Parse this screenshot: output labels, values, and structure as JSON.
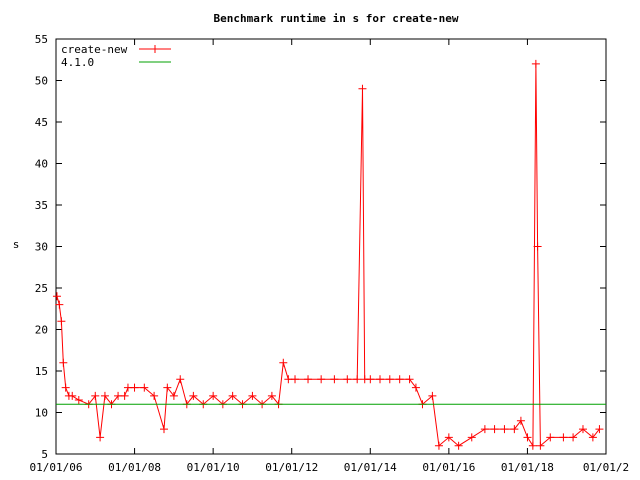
{
  "chart_data": {
    "type": "line",
    "title": "Benchmark runtime in s for create-new",
    "xlabel": "",
    "ylabel": "s",
    "x_tick_labels": [
      "01/01/06",
      "01/01/08",
      "01/01/10",
      "01/01/12",
      "01/01/14",
      "01/01/16",
      "01/01/18",
      "01/01/2"
    ],
    "ylim": [
      5,
      55
    ],
    "y_ticks": [
      5,
      10,
      15,
      20,
      25,
      30,
      35,
      40,
      45,
      50,
      55
    ],
    "xlim": [
      "2006-01-01",
      "2020-01-01"
    ],
    "grid": false,
    "legend_position": "top-left",
    "series": [
      {
        "name": "create-new",
        "color": "#ff0000",
        "marker": "plus",
        "points": [
          [
            "2006-01-10",
            24
          ],
          [
            "2006-02-01",
            23
          ],
          [
            "2006-02-20",
            21
          ],
          [
            "2006-03-10",
            16
          ],
          [
            "2006-04-01",
            13
          ],
          [
            "2006-05-01",
            12
          ],
          [
            "2006-06-01",
            12
          ],
          [
            "2006-08-01",
            11.5
          ],
          [
            "2006-11-01",
            11
          ],
          [
            "2007-01-01",
            12
          ],
          [
            "2007-02-15",
            7
          ],
          [
            "2007-04-01",
            12
          ],
          [
            "2007-06-01",
            11
          ],
          [
            "2007-08-01",
            12
          ],
          [
            "2007-10-01",
            12
          ],
          [
            "2007-11-01",
            13
          ],
          [
            "2008-01-01",
            13
          ],
          [
            "2008-04-01",
            13
          ],
          [
            "2008-07-01",
            12
          ],
          [
            "2008-10-01",
            8
          ],
          [
            "2008-11-01",
            13
          ],
          [
            "2009-01-01",
            12
          ],
          [
            "2009-03-01",
            14
          ],
          [
            "2009-05-01",
            11
          ],
          [
            "2009-07-01",
            12
          ],
          [
            "2009-10-01",
            11
          ],
          [
            "2010-01-01",
            12
          ],
          [
            "2010-04-01",
            11
          ],
          [
            "2010-07-01",
            12
          ],
          [
            "2010-10-01",
            11
          ],
          [
            "2011-01-01",
            12
          ],
          [
            "2011-04-01",
            11
          ],
          [
            "2011-07-01",
            12
          ],
          [
            "2011-09-01",
            11
          ],
          [
            "2011-10-15",
            16
          ],
          [
            "2011-12-01",
            14
          ],
          [
            "2012-02-01",
            14
          ],
          [
            "2012-06-01",
            14
          ],
          [
            "2012-10-01",
            14
          ],
          [
            "2013-02-01",
            14
          ],
          [
            "2013-06-01",
            14
          ],
          [
            "2013-09-01",
            14
          ],
          [
            "2013-10-20",
            49
          ],
          [
            "2013-11-10",
            14
          ],
          [
            "2014-01-01",
            14
          ],
          [
            "2014-04-01",
            14
          ],
          [
            "2014-07-01",
            14
          ],
          [
            "2014-10-01",
            14
          ],
          [
            "2015-01-01",
            14
          ],
          [
            "2015-03-01",
            13
          ],
          [
            "2015-05-01",
            11
          ],
          [
            "2015-08-01",
            12
          ],
          [
            "2015-10-01",
            6
          ],
          [
            "2016-01-01",
            7
          ],
          [
            "2016-04-01",
            6
          ],
          [
            "2016-08-01",
            7
          ],
          [
            "2016-12-01",
            8
          ],
          [
            "2017-03-01",
            8
          ],
          [
            "2017-06-01",
            8
          ],
          [
            "2017-09-01",
            8
          ],
          [
            "2017-11-01",
            9
          ],
          [
            "2018-01-01",
            7
          ],
          [
            "2018-02-20",
            6
          ],
          [
            "2018-03-20",
            52
          ],
          [
            "2018-04-05",
            30
          ],
          [
            "2018-05-01",
            6
          ],
          [
            "2018-08-01",
            7
          ],
          [
            "2018-12-01",
            7
          ],
          [
            "2019-03-01",
            7
          ],
          [
            "2019-06-01",
            8
          ],
          [
            "2019-09-01",
            7
          ],
          [
            "2019-11-01",
            8
          ]
        ]
      },
      {
        "name": "4.1.0",
        "color": "#00a000",
        "marker": "none",
        "constant_y": 11
      }
    ]
  }
}
